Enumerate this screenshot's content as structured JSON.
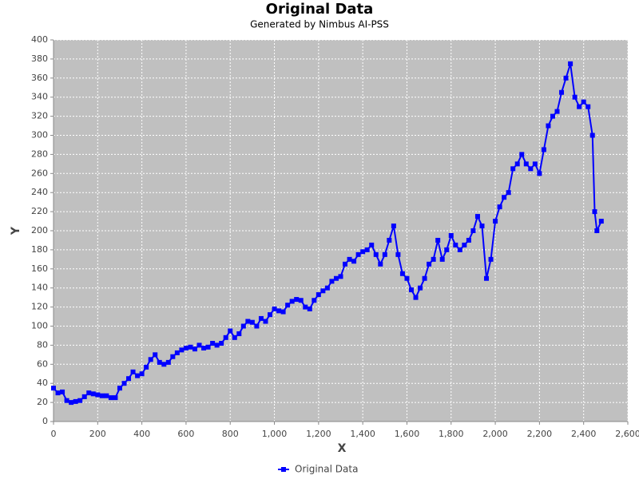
{
  "chart_data": {
    "type": "line",
    "title": "Original Data",
    "subtitle": "Generated by Nimbus AI-PSS",
    "x_label": "X",
    "y_label": "Y",
    "x": [
      0,
      20,
      40,
      60,
      80,
      100,
      120,
      140,
      160,
      180,
      200,
      220,
      240,
      260,
      280,
      300,
      320,
      340,
      360,
      380,
      400,
      420,
      440,
      460,
      480,
      500,
      520,
      540,
      560,
      580,
      600,
      620,
      640,
      660,
      680,
      700,
      720,
      740,
      760,
      780,
      800,
      820,
      840,
      860,
      880,
      900,
      920,
      940,
      960,
      980,
      1000,
      1020,
      1040,
      1060,
      1080,
      1100,
      1120,
      1140,
      1160,
      1180,
      1200,
      1220,
      1240,
      1260,
      1280,
      1300,
      1320,
      1340,
      1360,
      1380,
      1400,
      1420,
      1440,
      1460,
      1480,
      1500,
      1520,
      1540,
      1560,
      1580,
      1600,
      1620,
      1640,
      1660,
      1680,
      1700,
      1720,
      1740,
      1760,
      1780,
      1800,
      1820,
      1840,
      1860,
      1880,
      1900,
      1920,
      1940,
      1960,
      1980,
      2000,
      2020,
      2040,
      2060,
      2080,
      2100,
      2120,
      2140,
      2160,
      2180,
      2200,
      2220,
      2240,
      2260,
      2280,
      2300,
      2320,
      2340,
      2360,
      2380,
      2400,
      2420,
      2440,
      2450,
      2460,
      2480
    ],
    "series": [
      {
        "name": "Original Data",
        "color": "#0000ff",
        "values": [
          35,
          30,
          31,
          22,
          20,
          21,
          22,
          26,
          30,
          29,
          28,
          27,
          27,
          25,
          25,
          35,
          40,
          45,
          52,
          48,
          50,
          57,
          65,
          70,
          62,
          60,
          62,
          68,
          72,
          75,
          77,
          78,
          76,
          80,
          77,
          78,
          82,
          80,
          82,
          88,
          95,
          88,
          92,
          100,
          105,
          104,
          100,
          108,
          105,
          112,
          118,
          116,
          115,
          122,
          126,
          128,
          127,
          120,
          118,
          127,
          133,
          137,
          140,
          147,
          150,
          152,
          165,
          170,
          168,
          175,
          178,
          180,
          185,
          175,
          165,
          175,
          190,
          205,
          175,
          155,
          150,
          138,
          130,
          140,
          150,
          165,
          170,
          190,
          170,
          180,
          195,
          185,
          180,
          185,
          190,
          200,
          215,
          205,
          150,
          170,
          210,
          225,
          235,
          240,
          265,
          270,
          280,
          270,
          265,
          270,
          260,
          285,
          310,
          320,
          325,
          345,
          360,
          375,
          340,
          330,
          335,
          330,
          300,
          220,
          200,
          210
        ]
      }
    ],
    "xlim": [
      0,
      2600
    ],
    "xticks": [
      0,
      200,
      400,
      600,
      800,
      {
        "value": 1000,
        "label": "1,000"
      },
      {
        "value": 1200,
        "label": "1,200"
      },
      {
        "value": 1400,
        "label": "1,400"
      },
      {
        "value": 1600,
        "label": "1,600"
      },
      {
        "value": 1800,
        "label": "1,800"
      },
      {
        "value": 2000,
        "label": "2,000"
      },
      {
        "value": 2200,
        "label": "2,200"
      },
      {
        "value": 2400,
        "label": "2,400"
      },
      {
        "value": 2600,
        "label": "2,600"
      }
    ],
    "ylim": [
      0,
      400
    ],
    "yticks": [
      0,
      20,
      40,
      60,
      80,
      100,
      120,
      140,
      160,
      180,
      200,
      220,
      240,
      260,
      280,
      300,
      320,
      340,
      360,
      380,
      400
    ],
    "grid": true,
    "legend": "bottom"
  }
}
